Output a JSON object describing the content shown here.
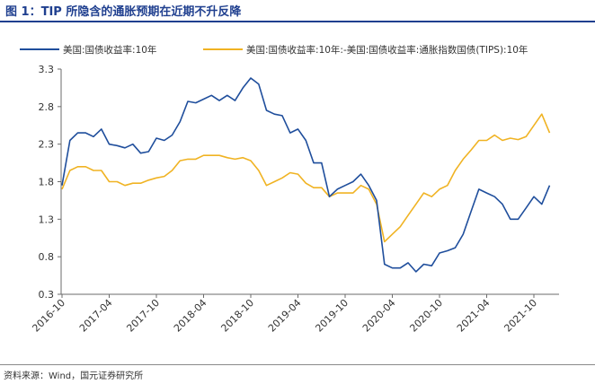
{
  "figure": {
    "title": "图 1：TIP 所隐含的通胀预期在近期不升反降",
    "source": "资料来源：Wind，国元证券研究所"
  },
  "chart_data": {
    "type": "line",
    "title": "",
    "xlabel": "",
    "ylabel": "",
    "ylim": [
      0.3,
      3.3
    ],
    "yticks": [
      0.3,
      0.8,
      1.3,
      1.8,
      2.3,
      2.8,
      3.3
    ],
    "ytick_labels": [
      "0.3",
      "0.8",
      "1.3",
      "1.8",
      "2.3",
      "2.8",
      "3.3"
    ],
    "xlim": [
      "2016-10",
      "2021-10"
    ],
    "xticks": [
      "2016-10",
      "2017-04",
      "2017-10",
      "2018-04",
      "2018-10",
      "2019-04",
      "2019-10",
      "2020-04",
      "2020-10",
      "2021-04",
      "2021-10"
    ],
    "grid": false,
    "legend_position": "top",
    "x": [
      "2016-10",
      "2016-11",
      "2016-12",
      "2017-01",
      "2017-02",
      "2017-03",
      "2017-04",
      "2017-05",
      "2017-06",
      "2017-07",
      "2017-08",
      "2017-09",
      "2017-10",
      "2017-11",
      "2017-12",
      "2018-01",
      "2018-02",
      "2018-03",
      "2018-04",
      "2018-05",
      "2018-06",
      "2018-07",
      "2018-08",
      "2018-09",
      "2018-10",
      "2018-11",
      "2018-12",
      "2019-01",
      "2019-02",
      "2019-03",
      "2019-04",
      "2019-05",
      "2019-06",
      "2019-07",
      "2019-08",
      "2019-09",
      "2019-10",
      "2019-11",
      "2019-12",
      "2020-01",
      "2020-02",
      "2020-03",
      "2020-04",
      "2020-05",
      "2020-06",
      "2020-07",
      "2020-08",
      "2020-09",
      "2020-10",
      "2020-11",
      "2020-12",
      "2021-01",
      "2021-02",
      "2021-03",
      "2021-04",
      "2021-05",
      "2021-06",
      "2021-07",
      "2021-08",
      "2021-09",
      "2021-10",
      "2021-11",
      "2021-12"
    ],
    "series": [
      {
        "name": "美国:国债收益率:10年",
        "color": "#1f4e9c",
        "values": [
          1.75,
          2.35,
          2.45,
          2.45,
          2.4,
          2.5,
          2.3,
          2.28,
          2.25,
          2.3,
          2.18,
          2.2,
          2.38,
          2.35,
          2.42,
          2.6,
          2.87,
          2.85,
          2.9,
          2.95,
          2.88,
          2.95,
          2.88,
          3.05,
          3.18,
          3.1,
          2.75,
          2.7,
          2.68,
          2.45,
          2.5,
          2.35,
          2.05,
          2.05,
          1.6,
          1.7,
          1.75,
          1.8,
          1.9,
          1.75,
          1.55,
          0.7,
          0.65,
          0.65,
          0.72,
          0.6,
          0.7,
          0.68,
          0.85,
          0.88,
          0.92,
          1.1,
          1.4,
          1.7,
          1.65,
          1.6,
          1.5,
          1.3,
          1.3,
          1.45,
          1.6,
          1.5,
          1.75
        ]
      },
      {
        "name": "美国:国债收益率:10年:-美国:国债收益率:通胀指数国债(TIPS):10年",
        "color": "#f0b323",
        "values": [
          1.7,
          1.95,
          2.0,
          2.0,
          1.95,
          1.95,
          1.8,
          1.8,
          1.75,
          1.78,
          1.78,
          1.82,
          1.85,
          1.87,
          1.95,
          2.08,
          2.1,
          2.1,
          2.15,
          2.15,
          2.15,
          2.12,
          2.1,
          2.12,
          2.08,
          1.95,
          1.75,
          1.8,
          1.85,
          1.92,
          1.9,
          1.78,
          1.72,
          1.72,
          1.6,
          1.65,
          1.65,
          1.65,
          1.75,
          1.7,
          1.5,
          1.0,
          1.1,
          1.2,
          1.35,
          1.5,
          1.65,
          1.6,
          1.7,
          1.75,
          1.95,
          2.1,
          2.22,
          2.35,
          2.35,
          2.42,
          2.35,
          2.38,
          2.36,
          2.4,
          2.55,
          2.7,
          2.45
        ]
      }
    ]
  }
}
